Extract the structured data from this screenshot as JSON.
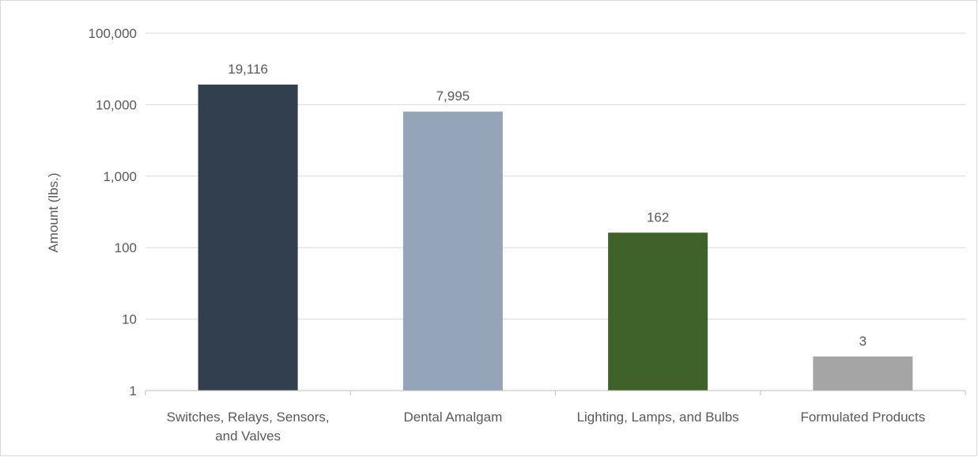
{
  "chart_data": {
    "type": "bar",
    "title": "",
    "xlabel": "",
    "ylabel": "Amount (lbs.)",
    "yscale": "log",
    "ylim": [
      1,
      100000
    ],
    "yticks": [
      1,
      10,
      100,
      1000,
      10000,
      100000
    ],
    "ytick_labels": [
      "1",
      "10",
      "100",
      "1,000",
      "10,000",
      "100,000"
    ],
    "grid": true,
    "legend": "none",
    "categories": [
      [
        "Switches, Relays, Sensors,",
        "and Valves"
      ],
      [
        "Dental Amalgam"
      ],
      [
        "Lighting, Lamps, and Bulbs"
      ],
      [
        "Formulated Products"
      ]
    ],
    "values": [
      19116,
      7995,
      162,
      3
    ],
    "value_labels": [
      "19,116",
      "7,995",
      "162",
      "3"
    ],
    "colors": [
      "#323f4f",
      "#94a4b9",
      "#3e6229",
      "#a5a5a5"
    ]
  }
}
